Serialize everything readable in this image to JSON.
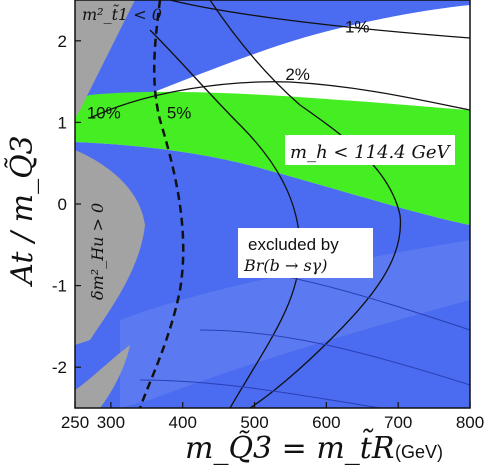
{
  "chart_data": {
    "type": "contour",
    "xlabel": "m_Q̃3 = m_t̃R",
    "xunit": "(GeV)",
    "ylabel": "At / m_Q̃3",
    "xlim": [
      250,
      800
    ],
    "ylim": [
      -2.5,
      2.5
    ],
    "xticks": [
      250,
      300,
      400,
      500,
      600,
      700,
      800
    ],
    "yticks": [
      -2,
      -1,
      0,
      1,
      2
    ],
    "colors": {
      "excluded_bsgamma": "#4b6bf0",
      "excluded_higgs": "#44ee22",
      "tachyonic": "#a3a3a3",
      "allowed": "#ffffff",
      "contour": "#111111"
    },
    "regions": [
      {
        "name": "excluded by Br(b → sγ)",
        "color": "#4b6bf0"
      },
      {
        "name": "m_h < 114.4 GeV",
        "color": "#44ee22"
      },
      {
        "name": "m²_t̃1 < 0",
        "color": "#a3a3a3"
      },
      {
        "name": "δm²_Hu > 0",
        "color": "#a3a3a3"
      }
    ],
    "contours": [
      {
        "label": "1%",
        "label_at": [
          643,
          2.1
        ]
      },
      {
        "label": "2%",
        "label_at": [
          560,
          1.52
        ]
      },
      {
        "label": "5%",
        "label_at": [
          395,
          1.05
        ]
      },
      {
        "label": "10%",
        "label_at": [
          290,
          1.05
        ]
      }
    ],
    "boundaries": [
      {
        "name": "m_t̃1² = 0 boundary",
        "style": "dashed"
      }
    ],
    "annotations": {
      "tachyon": "m²_t̃1 < 0",
      "higgs": "m_h < 114.4 GeV",
      "bsg_line1": "excluded by",
      "bsg_line2": "Br(b → sγ)",
      "hu": "δm²_Hu > 0"
    }
  }
}
